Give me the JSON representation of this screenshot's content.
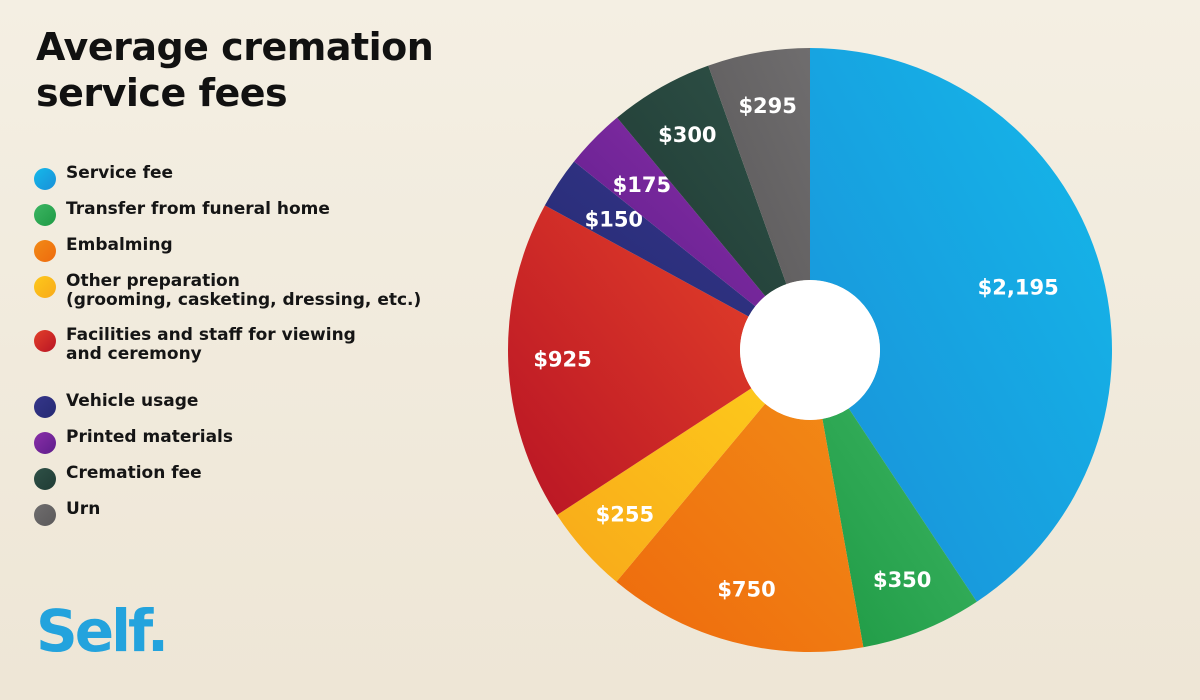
{
  "title": "Average cremation service fees",
  "logo": "Self.",
  "chart_data": {
    "type": "pie",
    "donut": true,
    "start": "top",
    "direction": "clockwise",
    "legend_placement": "left",
    "slices": [
      {
        "name": "Service fee",
        "value": 2195,
        "label": "$2,195",
        "color": "#1a8fd8",
        "color2": "#14b9ea"
      },
      {
        "name": "Transfer from funeral home",
        "value": 350,
        "label": "$350",
        "color": "#1f9a45",
        "color2": "#3cb562"
      },
      {
        "name": "Embalming",
        "value": 750,
        "label": "$750",
        "color": "#ee6a0d",
        "color2": "#f28a16"
      },
      {
        "name": "Other preparation\n(grooming, casketing, dressing, etc.)",
        "value": 255,
        "label": "$255",
        "color": "#f8a91a",
        "color2": "#fdc81b"
      },
      {
        "name": "Facilities and staff for viewing\nand ceremony",
        "value": 925,
        "label": "$925",
        "color": "#b81424",
        "color2": "#e3402a"
      },
      {
        "name": "Vehicle usage",
        "value": 150,
        "label": "$150",
        "color": "#252a73",
        "color2": "#35368a"
      },
      {
        "name": "Printed materials",
        "value": 175,
        "label": "$175",
        "color": "#5e1d8b",
        "color2": "#8a2fa8"
      },
      {
        "name": "Cremation fee",
        "value": 300,
        "label": "$300",
        "color": "#1f3b34",
        "color2": "#2f5147"
      },
      {
        "name": "Urn",
        "value": 295,
        "label": "$295",
        "color": "#5b595a",
        "color2": "#6f6d6e"
      }
    ]
  }
}
